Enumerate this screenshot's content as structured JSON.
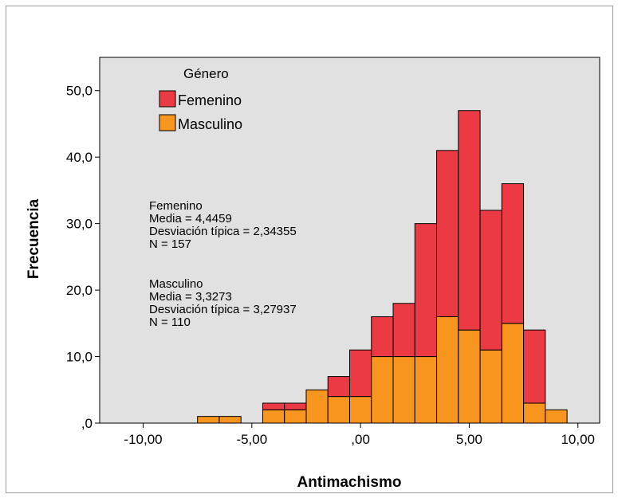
{
  "chart_data": {
    "type": "bar",
    "stacked": true,
    "xlabel": "Antimachismo",
    "ylabel": "Frecuencia",
    "xlim": [
      -12.0,
      11.0
    ],
    "ylim": [
      0,
      55
    ],
    "bin_width": 1.0,
    "x_ticks": [
      -10,
      -5,
      0,
      5,
      10
    ],
    "x_tick_labels": [
      "-10,00",
      "-5,00",
      ",00",
      "5,00",
      "10,00"
    ],
    "y_ticks": [
      0,
      10,
      20,
      30,
      40,
      50
    ],
    "y_tick_labels": [
      ",0",
      "10,0",
      "20,0",
      "30,0",
      "40,0",
      "50,0"
    ],
    "bin_starts": [
      -7.5,
      -6.5,
      -4.5,
      -3.5,
      -2.5,
      -1.5,
      -0.5,
      0.5,
      1.5,
      2.5,
      3.5,
      4.5,
      5.5,
      6.5,
      7.5,
      8.5
    ],
    "series": [
      {
        "name": "Masculino",
        "color": "#f7951e",
        "values": [
          1,
          1,
          2,
          2,
          5,
          4,
          4,
          10,
          10,
          10,
          16,
          14,
          11,
          15,
          3,
          2
        ]
      },
      {
        "name": "Femenino",
        "color": "#ec3a45",
        "values": [
          0,
          0,
          1,
          1,
          0,
          3,
          7,
          6,
          8,
          20,
          25,
          33,
          21,
          21,
          11,
          0
        ]
      }
    ],
    "legend": {
      "title": "Género",
      "position": "top-left",
      "entries": [
        {
          "label": "Femenino",
          "color": "#ec3a45"
        },
        {
          "label": "Masculino",
          "color": "#f7951e"
        }
      ]
    },
    "stats": {
      "femenino": [
        "Femenino",
        "Media = 4,4459",
        "Desviación típica = 2,34355",
        "N = 157"
      ],
      "masculino": [
        "Masculino",
        "Media = 3,3273",
        "Desviación típica = 3,27937",
        "N = 110"
      ]
    },
    "plot_background": "#e1e1e1",
    "grid": false
  }
}
